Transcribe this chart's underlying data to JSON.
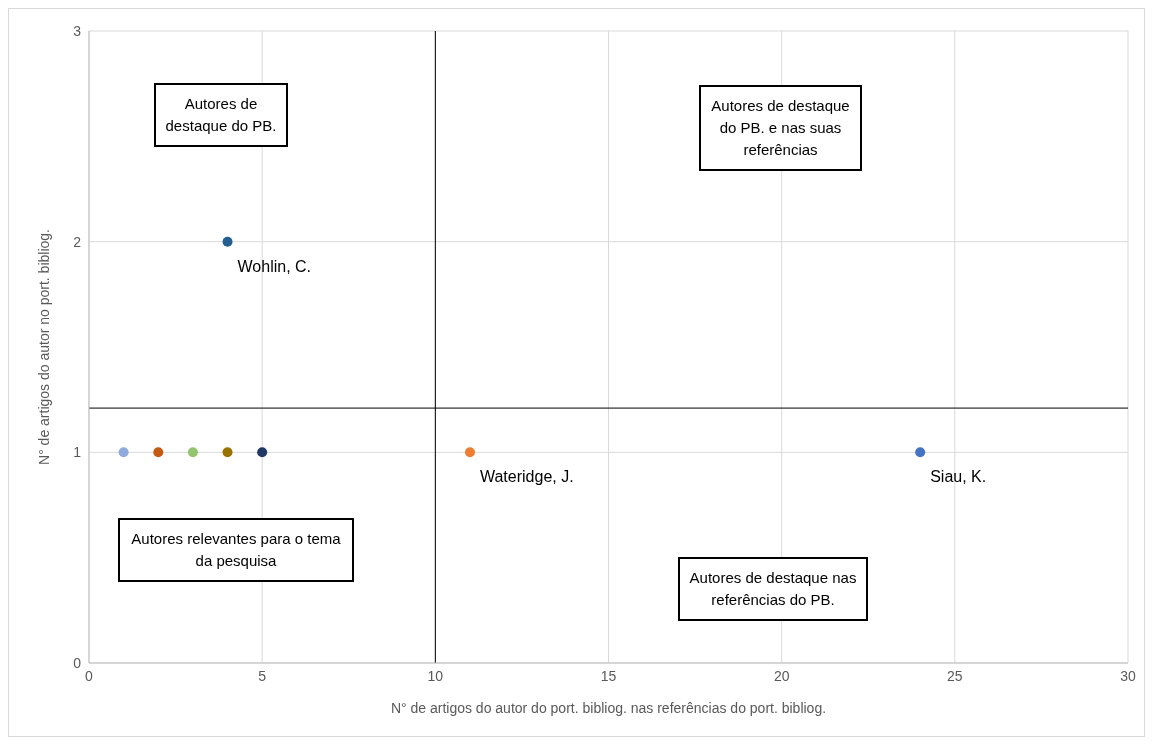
{
  "chart_data": {
    "type": "scatter",
    "xlabel": "N° de artigos do autor do port. bibliog. nas referências do port. bibliog.",
    "ylabel": "N° de artigos do autor no port. bibliog.",
    "xlim": [
      0,
      30
    ],
    "xticks": [
      0,
      5,
      10,
      15,
      20,
      25,
      30
    ],
    "ylim": [
      0,
      3
    ],
    "yticks": [
      0,
      1,
      2,
      3
    ],
    "grid": true,
    "marker": "circle",
    "legend": false,
    "series": [
      {
        "color": "#8faadc",
        "x": [
          1
        ],
        "values": [
          1
        ]
      },
      {
        "color": "#c55a11",
        "x": [
          2
        ],
        "values": [
          1
        ]
      },
      {
        "color": "#92c56e",
        "x": [
          3
        ],
        "values": [
          1
        ]
      },
      {
        "color": "#997300",
        "x": [
          4
        ],
        "values": [
          1
        ]
      },
      {
        "color": "#203864",
        "x": [
          5
        ],
        "values": [
          1
        ]
      },
      {
        "name": "Wohlin, C.",
        "color": "#255e91",
        "x": [
          4
        ],
        "values": [
          2
        ]
      },
      {
        "name": "Wateridge, J.",
        "color": "#ed7d31",
        "x": [
          11
        ],
        "values": [
          1
        ]
      },
      {
        "name": "Siau, K.",
        "color": "#4472c4",
        "x": [
          24
        ],
        "values": [
          1
        ]
      }
    ],
    "ref_lines": [
      {
        "axis": "x",
        "value": 10,
        "color": "#000000"
      },
      {
        "axis": "y",
        "value": 1.21,
        "color": "#000000"
      }
    ],
    "annotations": [
      "Autores de destaque do PB.",
      "Autores de destaque do PB. e nas suas referências",
      "Autores relevantes para o tema da pesquisa",
      "Autores de destaque nas referências do PB."
    ]
  }
}
